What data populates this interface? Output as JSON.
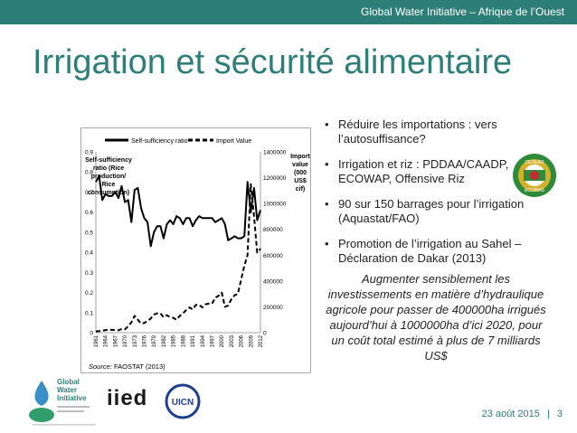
{
  "header": {
    "title": "Global Water Initiative – Afrique de l’Ouest"
  },
  "slide": {
    "title": "Irrigation et sécurité alimentaire"
  },
  "chart_data": {
    "type": "line",
    "legend": [
      "Self-sufficiency ratio",
      "Import Value"
    ],
    "ylabel_left": "Self-sufficiency ratio (Rice production/ Rice consumption)",
    "ylabel_left_lines": [
      "Self-sufficiency",
      "ratio (Rice",
      "production/",
      "Rice",
      "consumption)"
    ],
    "ylabel_right_lines": [
      "Import",
      "value",
      "(000",
      "US$",
      "cif)"
    ],
    "source_label": "Source:",
    "source_text": "FAOSTAT (2013)",
    "left_axis": {
      "min": 0,
      "max": 0.9,
      "ticks": [
        "0",
        "0.1",
        "0.2",
        "0.3",
        "0.4",
        "0.5",
        "0.6",
        "0.7",
        "0.8",
        "0.9"
      ]
    },
    "right_axis": {
      "min": 0,
      "max": 1400000,
      "ticks": [
        "0",
        "200000",
        "400000",
        "600000",
        "800000",
        "1000000",
        "1200000",
        "1400000"
      ]
    },
    "x_tick_labels": [
      "1961",
      "1964",
      "1967",
      "1970",
      "1973",
      "1976",
      "1979",
      "1982",
      "1985",
      "1988",
      "1991",
      "1994",
      "1997",
      "2000",
      "2003",
      "2006",
      "2009",
      "2012"
    ],
    "series": [
      {
        "name": "Self-sufficiency ratio",
        "axis": "left",
        "x": [
          1961,
          1962,
          1963,
          1964,
          1965,
          1966,
          1967,
          1968,
          1969,
          1970,
          1971,
          1972,
          1973,
          1974,
          1975,
          1976,
          1977,
          1978,
          1979,
          1980,
          1981,
          1982,
          1983,
          1984,
          1985,
          1986,
          1987,
          1988,
          1989,
          1990,
          1991,
          1992,
          1993,
          1994,
          1995,
          1996,
          1997,
          1998,
          1999,
          2000,
          2001,
          2002,
          2003,
          2004,
          2005,
          2006,
          2007,
          2008,
          2009,
          2010,
          2011,
          2012
        ],
        "values": [
          0.75,
          0.78,
          0.66,
          0.69,
          0.68,
          0.68,
          0.7,
          0.67,
          0.73,
          0.65,
          0.66,
          0.55,
          0.71,
          0.72,
          0.62,
          0.57,
          0.55,
          0.43,
          0.5,
          0.53,
          0.53,
          0.47,
          0.54,
          0.56,
          0.54,
          0.58,
          0.57,
          0.54,
          0.57,
          0.57,
          0.53,
          0.56,
          0.58,
          0.57,
          0.57,
          0.57,
          0.57,
          0.55,
          0.56,
          0.57,
          0.54,
          0.46,
          0.47,
          0.48,
          0.47,
          0.47,
          0.48,
          0.75,
          0.6,
          0.72,
          0.56,
          0.61
        ]
      },
      {
        "name": "Import Value",
        "axis": "right",
        "x": [
          1961,
          1962,
          1963,
          1964,
          1965,
          1966,
          1967,
          1968,
          1969,
          1970,
          1971,
          1972,
          1973,
          1974,
          1975,
          1976,
          1977,
          1978,
          1979,
          1980,
          1981,
          1982,
          1983,
          1984,
          1985,
          1986,
          1987,
          1988,
          1989,
          1990,
          1991,
          1992,
          1993,
          1994,
          1995,
          1996,
          1997,
          1998,
          1999,
          2000,
          2001,
          2002,
          2003,
          2004,
          2005,
          2006,
          2007,
          2008,
          2009,
          2010,
          2011,
          2012
        ],
        "values": [
          10000,
          12000,
          15000,
          20000,
          22000,
          22000,
          20000,
          18000,
          28000,
          25000,
          50000,
          80000,
          130000,
          100000,
          70000,
          75000,
          90000,
          110000,
          140000,
          150000,
          150000,
          120000,
          135000,
          120000,
          115000,
          100000,
          130000,
          150000,
          175000,
          195000,
          180000,
          215000,
          215000,
          195000,
          220000,
          225000,
          225000,
          270000,
          285000,
          310000,
          200000,
          210000,
          260000,
          290000,
          300000,
          410000,
          520000,
          600000,
          1150000,
          900000,
          620000,
          650000
        ]
      }
    ]
  },
  "bullets": [
    "Réduire les importations : vers l’autosuffisance?",
    "Irrigation et riz : PDDAA/CAADP, ECOWAP, Offensive Riz",
    "90 sur 150 barrages pour l’irrigation (Aquastat/FAO)",
    "Promotion de l’irrigation au Sahel – Déclaration de Dakar (2013)"
  ],
  "italic_paragraph": "Augmenter sensiblement les investissements en matière d’hydraulique agricole pour passer de 400000ha irrigués aujourd’hui à 1000000ha d’ici 2020, pour un coût total estimé à plus de 7 milliards US$",
  "footer": {
    "date": "23 août 2015",
    "separator": "|",
    "page": "3"
  },
  "logos": {
    "gwi_lines": [
      "Global",
      "Water",
      "Initiative"
    ],
    "iied": "iied",
    "uicn": "UICN",
    "ecowas": [
      "CEDEAO",
      "ECOWAS"
    ]
  },
  "colors": {
    "accent": "#2e7e78",
    "title": "#2f7f78"
  }
}
